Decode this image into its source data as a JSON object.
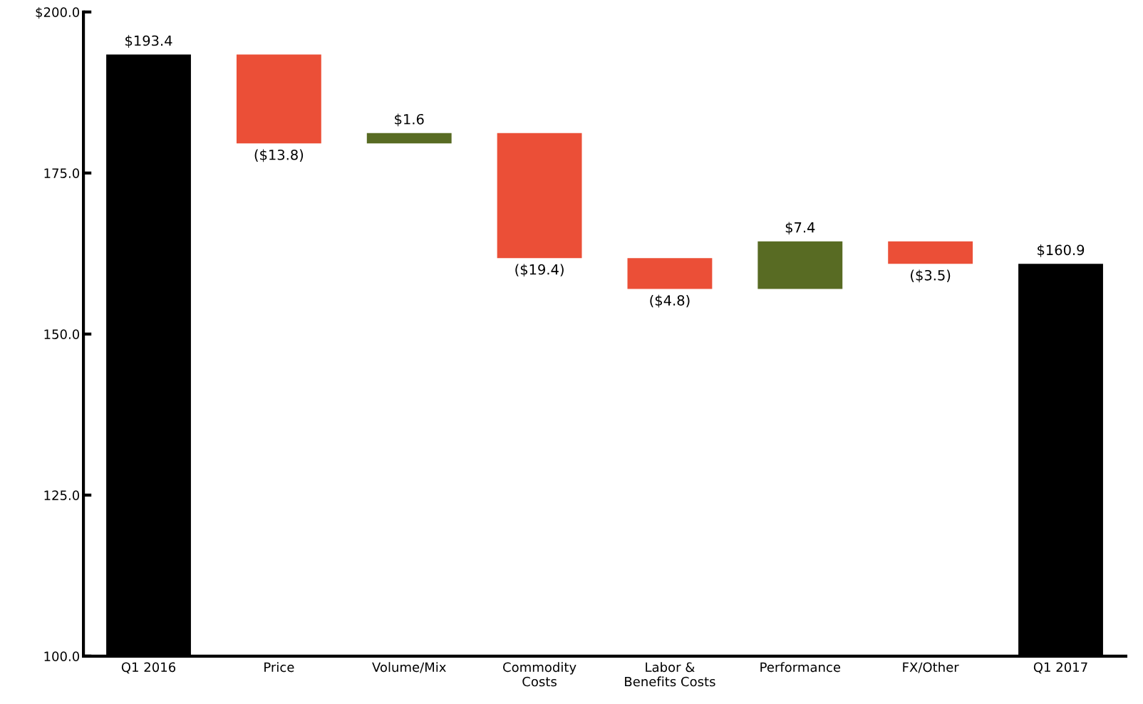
{
  "chart_data": {
    "type": "bar",
    "categories": [
      "Q1 2016",
      "Price",
      "Volume/Mix",
      "Commodity\nCosts",
      "Labor &\nBenefits Costs",
      "Performance",
      "FX/Other",
      "Q1 2017"
    ],
    "values": [
      193.4,
      -13.8,
      1.6,
      -19.4,
      -4.8,
      7.4,
      -3.5,
      160.9
    ],
    "base": [
      0,
      193.4,
      179.6,
      181.2,
      161.8,
      157.0,
      164.4,
      0
    ],
    "colors": [
      "#000000",
      "#eb4f37",
      "#586b23",
      "#eb4f37",
      "#eb4f37",
      "#586b23",
      "#eb4f37",
      "#000000"
    ],
    "value_labels": [
      "$193.4",
      "($13.8)",
      "$1.6",
      "($19.4)",
      "($4.8)",
      "$7.4",
      "($3.5)",
      "$160.9"
    ],
    "ylim": [
      100,
      200
    ],
    "yticks": [
      {
        "value": 100,
        "label": "100.0"
      },
      {
        "value": 125,
        "label": "125.0"
      },
      {
        "value": 150,
        "label": "150.0"
      },
      {
        "value": 175,
        "label": "175.0"
      },
      {
        "value": 200,
        "label": "$200.0"
      }
    ],
    "grid": false,
    "legend": false
  }
}
